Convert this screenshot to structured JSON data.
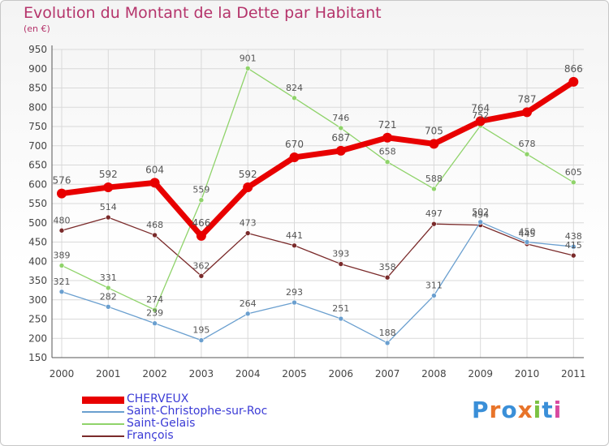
{
  "title": "Evolution du Montant de la Dette par Habitant",
  "subtitle": "(en €)",
  "brand": "Proxiti",
  "colors": {
    "title": "#b5346b",
    "grid": "#d9d9d9",
    "axis": "#555555",
    "legend_text": "#3b3bd6"
  },
  "chart_data": {
    "type": "line",
    "x": [
      "2000",
      "2001",
      "2002",
      "2003",
      "2004",
      "2005",
      "2006",
      "2007",
      "2008",
      "2009",
      "2010",
      "2011"
    ],
    "ylim": [
      150,
      950
    ],
    "yticks": [
      150,
      200,
      250,
      300,
      350,
      400,
      450,
      500,
      550,
      600,
      650,
      700,
      750,
      800,
      850,
      900,
      950
    ],
    "grid": true,
    "legend_position": "bottom-left",
    "series": [
      {
        "name": "CHERVEUX",
        "color": "#e80000",
        "values": [
          576,
          592,
          604,
          466,
          592,
          670,
          687,
          721,
          705,
          764,
          787,
          866
        ]
      },
      {
        "name": "Saint-Christophe-sur-Roc",
        "color": "#6a9fcf",
        "values": [
          321,
          282,
          239,
          195,
          264,
          293,
          251,
          188,
          311,
          502,
          450,
          438
        ]
      },
      {
        "name": "Saint-Gelais",
        "color": "#8fd36a",
        "values": [
          389,
          331,
          274,
          559,
          901,
          824,
          746,
          658,
          588,
          752,
          678,
          605
        ]
      },
      {
        "name": "François",
        "color": "#7a2a2a",
        "values": [
          480,
          514,
          468,
          362,
          473,
          441,
          393,
          358,
          497,
          494,
          445,
          415
        ]
      }
    ]
  }
}
